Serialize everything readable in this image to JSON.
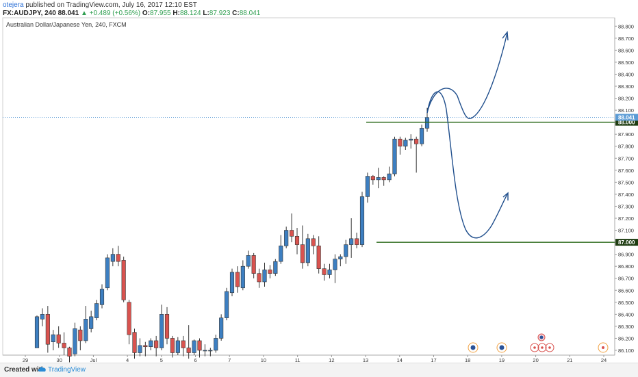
{
  "header": {
    "author": "otejera",
    "published_text": "published on TradingView.com, July 16, 2017 12:10 EST",
    "symbol_line": "FX:AUDJPY, 240  88.041",
    "change_text": "▲ +0.489 (+0.56%)",
    "o_label": "O:",
    "o_value": "87.955",
    "h_label": "H:",
    "h_value": "88.124",
    "l_label": "L:",
    "l_value": "87.923",
    "c_label": "C:",
    "c_value": "88.041"
  },
  "footer": {
    "created_with": "Created with",
    "brand": "TradingView"
  },
  "colors": {
    "up": "#3d7fc1",
    "down": "#d9534f",
    "level": "#2e6b1e",
    "arrow": "#1f4e8c",
    "price_line": "#5b9bd5"
  },
  "chart_data": {
    "type": "candlestick",
    "title": "Australian Dollar/Japanese Yen, 240, FXCM",
    "x_tick_labels": [
      "29",
      "30",
      "Jul",
      "4",
      "5",
      "6",
      "7",
      "10",
      "11",
      "12",
      "13",
      "14",
      "17",
      "18",
      "19",
      "20",
      "21",
      "24"
    ],
    "y_ticks": [
      "88.800",
      "88.700",
      "88.600",
      "88.500",
      "88.400",
      "88.300",
      "88.200",
      "88.100",
      "88.000",
      "87.900",
      "87.800",
      "87.700",
      "87.600",
      "87.500",
      "87.400",
      "87.300",
      "87.200",
      "87.100",
      "87.000",
      "86.900",
      "86.800",
      "86.700",
      "86.600",
      "86.500",
      "86.400",
      "86.300",
      "86.200",
      "86.100"
    ],
    "ylim": [
      86.06,
      88.87
    ],
    "current_price": "88.041",
    "levels": [
      {
        "label": "88.000",
        "value": 88.0
      },
      {
        "label": "87.000",
        "value": 87.0
      }
    ],
    "candles": [
      [
        86.12,
        86.38,
        86.12,
        86.39
      ],
      [
        86.36,
        86.4,
        86.3,
        86.45
      ],
      [
        86.4,
        86.15,
        86.08,
        86.47
      ],
      [
        86.17,
        86.23,
        86.1,
        86.27
      ],
      [
        86.23,
        86.16,
        86.12,
        86.3
      ],
      [
        86.16,
        86.12,
        86.06,
        86.25
      ],
      [
        86.12,
        86.05,
        86.0,
        86.13
      ],
      [
        86.07,
        86.28,
        86.05,
        86.33
      ],
      [
        86.27,
        86.18,
        86.1,
        86.3
      ],
      [
        86.18,
        86.36,
        86.16,
        86.47
      ],
      [
        86.28,
        86.38,
        86.25,
        86.43
      ],
      [
        86.37,
        86.49,
        86.35,
        86.52
      ],
      [
        86.48,
        86.61,
        86.45,
        86.65
      ],
      [
        86.62,
        86.87,
        86.6,
        86.9
      ],
      [
        86.84,
        86.9,
        86.8,
        86.95
      ],
      [
        86.9,
        86.84,
        86.8,
        86.97
      ],
      [
        86.85,
        86.52,
        86.5,
        86.88
      ],
      [
        86.5,
        86.23,
        86.15,
        86.52
      ],
      [
        86.25,
        86.08,
        86.03,
        86.28
      ],
      [
        86.08,
        86.14,
        86.05,
        86.2
      ],
      [
        86.14,
        86.13,
        86.05,
        86.17
      ],
      [
        86.13,
        86.18,
        86.1,
        86.2
      ],
      [
        86.18,
        86.12,
        86.05,
        86.22
      ],
      [
        86.12,
        86.4,
        86.1,
        86.48
      ],
      [
        86.4,
        86.2,
        86.15,
        86.46
      ],
      [
        86.2,
        86.08,
        86.04,
        86.22
      ],
      [
        86.08,
        86.18,
        86.06,
        86.21
      ],
      [
        86.18,
        86.12,
        86.05,
        86.22
      ],
      [
        86.12,
        86.08,
        86.03,
        86.31
      ],
      [
        86.08,
        86.18,
        86.06,
        86.19
      ],
      [
        86.18,
        86.1,
        86.04,
        86.2
      ],
      [
        86.1,
        86.1,
        86.05,
        86.15
      ],
      [
        86.1,
        86.1,
        86.05,
        86.12
      ],
      [
        86.1,
        86.2,
        86.08,
        86.23
      ],
      [
        86.2,
        86.37,
        86.18,
        86.4
      ],
      [
        86.37,
        86.59,
        86.35,
        86.62
      ],
      [
        86.58,
        86.75,
        86.55,
        86.78
      ],
      [
        86.75,
        86.63,
        86.58,
        86.8
      ],
      [
        86.62,
        86.8,
        86.6,
        86.85
      ],
      [
        86.8,
        86.89,
        86.78,
        86.93
      ],
      [
        86.89,
        86.74,
        86.7,
        86.91
      ],
      [
        86.74,
        86.67,
        86.62,
        86.78
      ],
      [
        86.67,
        86.77,
        86.63,
        86.83
      ],
      [
        86.77,
        86.74,
        86.7,
        86.81
      ],
      [
        86.74,
        86.84,
        86.72,
        86.86
      ],
      [
        86.84,
        86.97,
        86.82,
        87.06
      ],
      [
        86.97,
        87.1,
        86.95,
        87.13
      ],
      [
        87.1,
        87.05,
        87.0,
        87.24
      ],
      [
        87.05,
        86.98,
        86.9,
        87.12
      ],
      [
        86.98,
        86.83,
        86.78,
        87.14
      ],
      [
        86.83,
        87.03,
        86.8,
        87.07
      ],
      [
        87.03,
        86.97,
        86.9,
        87.06
      ],
      [
        86.97,
        86.78,
        86.74,
        87.05
      ],
      [
        86.78,
        86.73,
        86.68,
        86.82
      ],
      [
        86.73,
        86.77,
        86.7,
        86.82
      ],
      [
        86.77,
        86.86,
        86.66,
        86.9
      ],
      [
        86.86,
        86.88,
        86.8,
        86.9
      ],
      [
        86.88,
        86.98,
        86.82,
        87.02
      ],
      [
        86.98,
        87.03,
        86.87,
        87.2
      ],
      [
        87.03,
        86.98,
        86.95,
        87.08
      ],
      [
        86.98,
        87.38,
        86.96,
        87.42
      ],
      [
        87.38,
        87.55,
        87.33,
        87.58
      ],
      [
        87.55,
        87.52,
        87.48,
        87.56
      ],
      [
        87.52,
        87.54,
        87.45,
        87.62
      ],
      [
        87.54,
        87.52,
        87.47,
        87.55
      ],
      [
        87.52,
        87.57,
        87.5,
        87.63
      ],
      [
        87.57,
        87.86,
        87.55,
        87.88
      ],
      [
        87.86,
        87.8,
        87.73,
        87.88
      ],
      [
        87.8,
        87.85,
        87.77,
        87.87
      ],
      [
        87.85,
        87.86,
        87.78,
        87.9
      ],
      [
        87.86,
        87.82,
        87.58,
        87.88
      ],
      [
        87.82,
        87.95,
        87.8,
        87.98
      ],
      [
        87.95,
        88.04,
        87.92,
        88.12
      ]
    ]
  }
}
